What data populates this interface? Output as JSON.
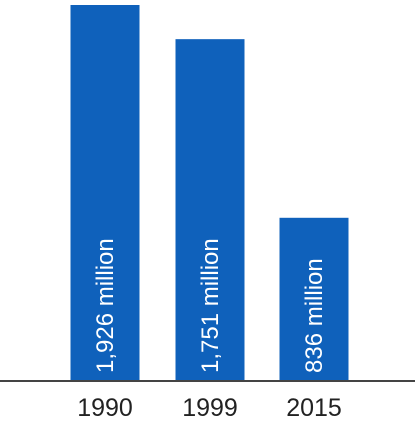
{
  "chart_data": {
    "type": "bar",
    "categories": [
      "1990",
      "1999",
      "2015"
    ],
    "values": [
      1926,
      1751,
      836
    ],
    "data_labels": [
      "1,926 million",
      "1,751 million",
      "836 million"
    ],
    "title": "",
    "xlabel": "",
    "ylabel": "",
    "ylim": [
      0,
      1926
    ],
    "grid": false,
    "colors": {
      "bar": "#0f61bb",
      "axis": "#444444",
      "text": "#222222",
      "bar_text": "#ffffff"
    }
  }
}
